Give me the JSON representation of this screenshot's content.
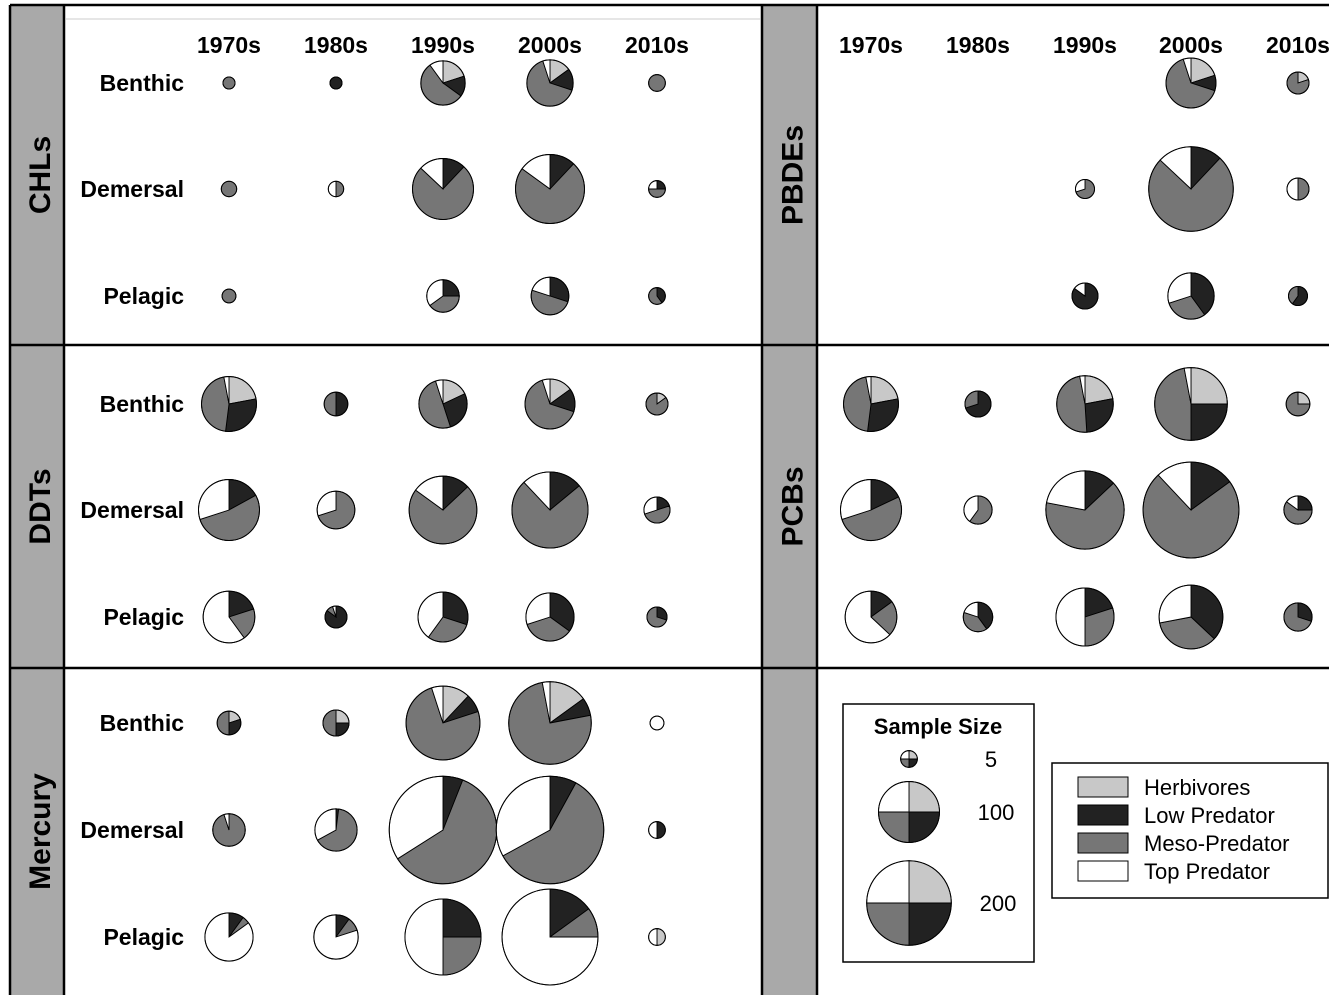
{
  "colors": {
    "herbivores": "#c8c8c8",
    "low_predator": "#222222",
    "meso_predator": "#767676",
    "top_predator": "#ffffff",
    "strip": "#a9a9a9",
    "border": "#000000"
  },
  "chart_data": {
    "type": "pie",
    "decades": [
      "1970s",
      "1980s",
      "1990s",
      "2000s",
      "2010s"
    ],
    "habitats": [
      "Benthic",
      "Demersal",
      "Pelagic"
    ],
    "trophic_groups": [
      "Herbivores",
      "Low Predator",
      "Meso-Predator",
      "Top Predator"
    ],
    "panels": [
      {
        "contaminant": "CHLs",
        "cells": [
          [
            {
              "n": 2,
              "p": [
                0,
                0,
                1,
                0
              ]
            },
            {
              "n": 2,
              "p": [
                0,
                1,
                0,
                0
              ]
            },
            {
              "n": 50,
              "p": [
                0.2,
                0.15,
                0.55,
                0.1
              ]
            },
            {
              "n": 55,
              "p": [
                0.15,
                0.15,
                0.65,
                0.05
              ]
            },
            {
              "n": 5,
              "p": [
                0,
                0,
                1,
                0
              ]
            }
          ],
          [
            {
              "n": 4,
              "p": [
                0,
                0,
                1,
                0
              ]
            },
            {
              "n": 4,
              "p": [
                0,
                0,
                0.5,
                0.5
              ]
            },
            {
              "n": 100,
              "p": [
                0,
                0.12,
                0.75,
                0.13
              ]
            },
            {
              "n": 130,
              "p": [
                0,
                0.12,
                0.73,
                0.15
              ]
            },
            {
              "n": 5,
              "p": [
                0,
                0.25,
                0.5,
                0.25
              ]
            }
          ],
          [
            {
              "n": 3,
              "p": [
                0,
                0,
                1,
                0
              ]
            },
            null,
            {
              "n": 25,
              "p": [
                0,
                0.25,
                0.4,
                0.35
              ]
            },
            {
              "n": 35,
              "p": [
                0,
                0.3,
                0.5,
                0.2
              ]
            },
            {
              "n": 5,
              "p": [
                0,
                0.4,
                0.6,
                0
              ]
            }
          ]
        ]
      },
      {
        "contaminant": "PBDEs",
        "cells": [
          [
            null,
            null,
            null,
            {
              "n": 65,
              "p": [
                0.2,
                0.1,
                0.65,
                0.05
              ]
            },
            {
              "n": 10,
              "p": [
                0.2,
                0,
                0.8,
                0
              ]
            }
          ],
          [
            null,
            null,
            {
              "n": 7,
              "p": [
                0,
                0,
                0.7,
                0.3
              ]
            },
            {
              "n": 200,
              "p": [
                0,
                0.12,
                0.75,
                0.13
              ]
            },
            {
              "n": 10,
              "p": [
                0,
                0,
                0.5,
                0.5
              ]
            }
          ],
          [
            null,
            null,
            {
              "n": 15,
              "p": [
                0,
                0.85,
                0,
                0.15
              ]
            },
            {
              "n": 55,
              "p": [
                0,
                0.4,
                0.3,
                0.3
              ]
            },
            {
              "n": 7,
              "p": [
                0,
                0.6,
                0.4,
                0
              ]
            }
          ]
        ]
      },
      {
        "contaminant": "DDTs",
        "cells": [
          [
            {
              "n": 80,
              "p": [
                0.22,
                0.3,
                0.45,
                0.03
              ]
            },
            {
              "n": 12,
              "p": [
                0,
                0.5,
                0.5,
                0
              ]
            },
            {
              "n": 60,
              "p": [
                0.18,
                0.27,
                0.5,
                0.05
              ]
            },
            {
              "n": 65,
              "p": [
                0.15,
                0.15,
                0.65,
                0.05
              ]
            },
            {
              "n": 10,
              "p": [
                0.15,
                0,
                0.85,
                0
              ]
            }
          ],
          [
            {
              "n": 100,
              "p": [
                0,
                0.17,
                0.53,
                0.3
              ]
            },
            {
              "n": 35,
              "p": [
                0,
                0,
                0.7,
                0.3
              ]
            },
            {
              "n": 125,
              "p": [
                0,
                0.13,
                0.72,
                0.15
              ]
            },
            {
              "n": 160,
              "p": [
                0,
                0.14,
                0.74,
                0.12
              ]
            },
            {
              "n": 15,
              "p": [
                0,
                0.2,
                0.5,
                0.3
              ]
            }
          ],
          [
            {
              "n": 70,
              "p": [
                0,
                0.2,
                0.2,
                0.6
              ]
            },
            {
              "n": 10,
              "p": [
                0,
                0.85,
                0.1,
                0.05
              ]
            },
            {
              "n": 65,
              "p": [
                0,
                0.3,
                0.3,
                0.4
              ]
            },
            {
              "n": 60,
              "p": [
                0,
                0.35,
                0.35,
                0.3
              ]
            },
            {
              "n": 8,
              "p": [
                0,
                0.3,
                0.7,
                0
              ]
            }
          ]
        ]
      },
      {
        "contaminant": "PCBs",
        "cells": [
          [
            {
              "n": 80,
              "p": [
                0.22,
                0.3,
                0.45,
                0.03
              ]
            },
            {
              "n": 15,
              "p": [
                0,
                0.7,
                0.3,
                0
              ]
            },
            {
              "n": 85,
              "p": [
                0.22,
                0.27,
                0.48,
                0.03
              ]
            },
            {
              "n": 145,
              "p": [
                0.25,
                0.25,
                0.47,
                0.03
              ]
            },
            {
              "n": 12,
              "p": [
                0.25,
                0,
                0.75,
                0
              ]
            }
          ],
          [
            {
              "n": 100,
              "p": [
                0,
                0.18,
                0.52,
                0.3
              ]
            },
            {
              "n": 18,
              "p": [
                0,
                0,
                0.6,
                0.4
              ]
            },
            {
              "n": 170,
              "p": [
                0,
                0.13,
                0.65,
                0.22
              ]
            },
            {
              "n": 260,
              "p": [
                0,
                0.15,
                0.73,
                0.12
              ]
            },
            {
              "n": 18,
              "p": [
                0,
                0.25,
                0.6,
                0.15
              ]
            }
          ],
          [
            {
              "n": 70,
              "p": [
                0,
                0.15,
                0.22,
                0.63
              ]
            },
            {
              "n": 20,
              "p": [
                0,
                0.4,
                0.4,
                0.2
              ]
            },
            {
              "n": 90,
              "p": [
                0,
                0.2,
                0.3,
                0.5
              ]
            },
            {
              "n": 110,
              "p": [
                0,
                0.37,
                0.35,
                0.28
              ]
            },
            {
              "n": 18,
              "p": [
                0,
                0.3,
                0.7,
                0
              ]
            }
          ]
        ]
      },
      {
        "contaminant": "Mercury",
        "cells": [
          [
            {
              "n": 12,
              "p": [
                0.2,
                0.3,
                0.5,
                0
              ]
            },
            {
              "n": 15,
              "p": [
                0.25,
                0.25,
                0.5,
                0
              ]
            },
            {
              "n": 150,
              "p": [
                0.12,
                0.08,
                0.75,
                0.05
              ]
            },
            {
              "n": 190,
              "p": [
                0.15,
                0.07,
                0.75,
                0.03
              ]
            },
            {
              "n": 3,
              "p": [
                0,
                0,
                0,
                1
              ]
            }
          ],
          [
            {
              "n": 25,
              "p": [
                0,
                0,
                0.95,
                0.05
              ]
            },
            {
              "n": 45,
              "p": [
                0,
                0.02,
                0.65,
                0.33
              ]
            },
            {
              "n": 330,
              "p": [
                0,
                0.06,
                0.6,
                0.34
              ]
            },
            {
              "n": 330,
              "p": [
                0,
                0.08,
                0.59,
                0.33
              ]
            },
            {
              "n": 5,
              "p": [
                0,
                0.5,
                0,
                0.5
              ]
            }
          ],
          [
            {
              "n": 60,
              "p": [
                0,
                0.1,
                0.05,
                0.85
              ]
            },
            {
              "n": 50,
              "p": [
                0,
                0.1,
                0.1,
                0.8
              ]
            },
            {
              "n": 160,
              "p": [
                0,
                0.25,
                0.25,
                0.5
              ]
            },
            {
              "n": 260,
              "p": [
                0,
                0.15,
                0.1,
                0.75
              ]
            },
            {
              "n": 5,
              "p": [
                0.5,
                0,
                0,
                0.5
              ]
            }
          ]
        ]
      }
    ],
    "size_legend": {
      "title": "Sample Size",
      "entries": [
        {
          "label": "5",
          "n": 5
        },
        {
          "label": "100",
          "n": 100
        },
        {
          "label": "200",
          "n": 200
        }
      ]
    },
    "legend": {
      "entries": [
        "Herbivores",
        "Low Predator",
        "Meso-Predator",
        "Top Predator"
      ],
      "placement": "bottom-right"
    }
  }
}
